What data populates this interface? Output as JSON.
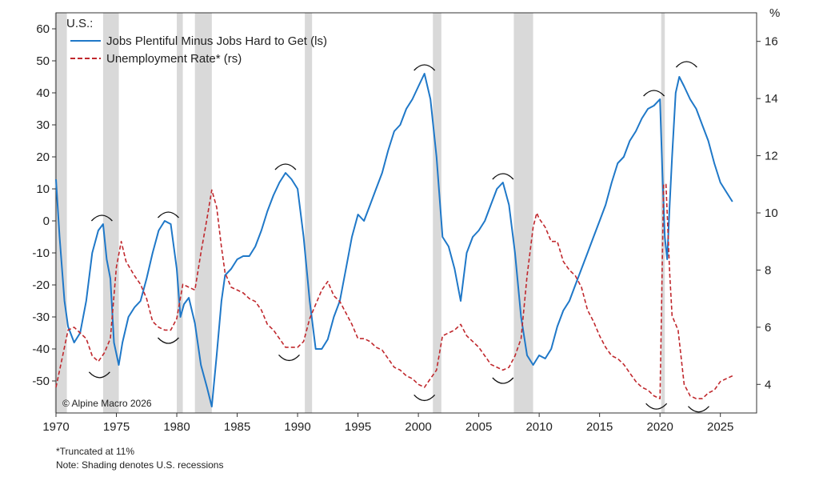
{
  "chart_data": {
    "type": "line",
    "title": "U.S.:",
    "credit": "© Alpine Macro 2026",
    "right_unit": "%",
    "x_ticks": [
      "1970",
      "1975",
      "1980",
      "1985",
      "1990",
      "1995",
      "2000",
      "2005",
      "2010",
      "2015",
      "2020",
      "2025"
    ],
    "xlim": [
      1970,
      2028
    ],
    "ylim_left": [
      -60,
      65
    ],
    "left_ticks": [
      "60",
      "50",
      "40",
      "30",
      "20",
      "10",
      "0",
      "-10",
      "-20",
      "-30",
      "-40",
      "-50"
    ],
    "ylim_right": [
      3,
      17
    ],
    "right_ticks": [
      "16",
      "14",
      "12",
      "10",
      "8",
      "6",
      "4"
    ],
    "grid": false,
    "legend_position": "top-left",
    "recessions": [
      [
        1969.9,
        1970.9
      ],
      [
        1973.9,
        1975.2
      ],
      [
        1980.0,
        1980.5
      ],
      [
        1981.5,
        1982.9
      ],
      [
        1990.6,
        1991.2
      ],
      [
        2001.2,
        2001.9
      ],
      [
        2007.9,
        2009.5
      ],
      [
        2020.1,
        2020.4
      ]
    ],
    "series": [
      {
        "name": "Jobs Plentiful Minus Jobs Hard to Get (ls)",
        "axis": "left",
        "color": "#1f78c8",
        "style": "solid",
        "x": [
          1970.0,
          1970.3,
          1970.7,
          1971.0,
          1971.5,
          1972.0,
          1972.5,
          1973.0,
          1973.5,
          1973.9,
          1974.2,
          1974.5,
          1974.8,
          1975.2,
          1975.5,
          1976.0,
          1976.5,
          1977.0,
          1977.5,
          1978.0,
          1978.5,
          1979.0,
          1979.5,
          1980.0,
          1980.3,
          1980.6,
          1981.0,
          1981.5,
          1982.0,
          1982.5,
          1982.9,
          1983.3,
          1983.7,
          1984.0,
          1984.5,
          1985.0,
          1985.5,
          1986.0,
          1986.5,
          1987.0,
          1987.5,
          1988.0,
          1988.5,
          1989.0,
          1989.5,
          1990.0,
          1990.5,
          1991.0,
          1991.5,
          1992.0,
          1992.5,
          1993.0,
          1993.5,
          1994.0,
          1994.5,
          1995.0,
          1995.5,
          1996.0,
          1996.5,
          1997.0,
          1997.5,
          1998.0,
          1998.5,
          1999.0,
          1999.5,
          2000.0,
          2000.5,
          2001.0,
          2001.5,
          2001.8,
          2002.0,
          2002.5,
          2003.0,
          2003.5,
          2004.0,
          2004.5,
          2005.0,
          2005.5,
          2006.0,
          2006.5,
          2007.0,
          2007.5,
          2008.0,
          2008.5,
          2009.0,
          2009.5,
          2010.0,
          2010.5,
          2011.0,
          2011.5,
          2012.0,
          2012.5,
          2013.0,
          2013.5,
          2014.0,
          2014.5,
          2015.0,
          2015.5,
          2016.0,
          2016.5,
          2017.0,
          2017.5,
          2018.0,
          2018.5,
          2019.0,
          2019.5,
          2020.0,
          2020.2,
          2020.4,
          2020.6,
          2020.8,
          2021.0,
          2021.3,
          2021.6,
          2022.0,
          2022.5,
          2023.0,
          2023.5,
          2024.0,
          2024.5,
          2025.0,
          2025.5,
          2026.0
        ],
        "values": [
          13,
          -5,
          -25,
          -33,
          -38,
          -35,
          -25,
          -10,
          -3,
          -1,
          -12,
          -18,
          -38,
          -45,
          -38,
          -30,
          -27,
          -25,
          -18,
          -10,
          -3,
          0,
          -1,
          -15,
          -30,
          -26,
          -24,
          -32,
          -45,
          -52,
          -58,
          -42,
          -25,
          -17,
          -15,
          -12,
          -11,
          -11,
          -8,
          -3,
          3,
          8,
          12,
          15,
          13,
          10,
          -5,
          -25,
          -40,
          -40,
          -37,
          -30,
          -25,
          -15,
          -5,
          2,
          0,
          5,
          10,
          15,
          22,
          28,
          30,
          35,
          38,
          42,
          46,
          38,
          20,
          5,
          -5,
          -8,
          -15,
          -25,
          -10,
          -5,
          -3,
          0,
          5,
          10,
          12,
          5,
          -10,
          -30,
          -42,
          -45,
          -42,
          -43,
          -40,
          -33,
          -28,
          -25,
          -20,
          -15,
          -10,
          -5,
          0,
          5,
          12,
          18,
          20,
          25,
          28,
          32,
          35,
          36,
          38,
          15,
          -5,
          -12,
          5,
          20,
          40,
          45,
          42,
          38,
          35,
          30,
          25,
          18,
          12,
          9,
          6
        ]
      },
      {
        "name": "Unemployment Rate* (rs)",
        "axis": "right",
        "color": "#c0282d",
        "style": "dashed",
        "x": [
          1970.0,
          1970.5,
          1971.0,
          1971.5,
          1972.0,
          1972.5,
          1973.0,
          1973.5,
          1974.0,
          1974.5,
          1975.0,
          1975.4,
          1975.8,
          1976.5,
          1977.0,
          1977.5,
          1978.0,
          1978.5,
          1979.0,
          1979.5,
          1980.0,
          1980.5,
          1981.0,
          1981.5,
          1982.0,
          1982.5,
          1982.9,
          1983.3,
          1983.7,
          1984.0,
          1984.5,
          1985.0,
          1985.5,
          1986.0,
          1986.5,
          1987.0,
          1987.5,
          1988.0,
          1988.5,
          1989.0,
          1989.5,
          1990.0,
          1990.5,
          1991.0,
          1991.5,
          1992.0,
          1992.5,
          1993.0,
          1993.5,
          1994.0,
          1994.5,
          1995.0,
          1995.5,
          1996.0,
          1996.5,
          1997.0,
          1997.5,
          1998.0,
          1998.5,
          1999.0,
          1999.5,
          2000.0,
          2000.5,
          2001.0,
          2001.5,
          2002.0,
          2002.5,
          2003.0,
          2003.5,
          2004.0,
          2004.5,
          2005.0,
          2005.5,
          2006.0,
          2006.5,
          2007.0,
          2007.5,
          2008.0,
          2008.5,
          2009.0,
          2009.5,
          2009.8,
          2010.0,
          2010.5,
          2011.0,
          2011.5,
          2012.0,
          2012.5,
          2013.0,
          2013.5,
          2014.0,
          2014.5,
          2015.0,
          2015.5,
          2016.0,
          2016.5,
          2017.0,
          2017.5,
          2018.0,
          2018.5,
          2019.0,
          2019.5,
          2020.0,
          2020.3,
          2020.5,
          2020.8,
          2021.0,
          2021.5,
          2022.0,
          2022.5,
          2023.0,
          2023.5,
          2024.0,
          2024.5,
          2025.0,
          2025.5,
          2026.0
        ],
        "values": [
          3.9,
          4.9,
          5.9,
          6.0,
          5.8,
          5.6,
          5.0,
          4.8,
          5.1,
          5.6,
          8.1,
          9.0,
          8.3,
          7.8,
          7.5,
          7.0,
          6.2,
          6.0,
          5.9,
          5.9,
          6.3,
          7.5,
          7.4,
          7.3,
          8.6,
          9.8,
          10.8,
          10.2,
          8.8,
          7.9,
          7.4,
          7.3,
          7.2,
          7.0,
          6.9,
          6.6,
          6.1,
          5.9,
          5.6,
          5.3,
          5.3,
          5.3,
          5.5,
          6.3,
          6.8,
          7.3,
          7.6,
          7.1,
          6.9,
          6.5,
          6.1,
          5.6,
          5.6,
          5.5,
          5.3,
          5.2,
          4.9,
          4.6,
          4.5,
          4.3,
          4.2,
          4.0,
          3.9,
          4.2,
          4.5,
          5.7,
          5.8,
          5.9,
          6.1,
          5.7,
          5.5,
          5.3,
          5.0,
          4.7,
          4.6,
          4.5,
          4.6,
          5.0,
          5.6,
          7.8,
          9.5,
          10.0,
          9.8,
          9.5,
          9.0,
          9.0,
          8.3,
          8.0,
          7.8,
          7.4,
          6.6,
          6.2,
          5.7,
          5.3,
          5.0,
          4.9,
          4.7,
          4.4,
          4.1,
          3.9,
          3.8,
          3.6,
          3.5,
          11.0,
          11.0,
          7.9,
          6.4,
          5.9,
          4.0,
          3.6,
          3.5,
          3.5,
          3.7,
          3.8,
          4.1,
          4.2,
          4.3
        ]
      }
    ],
    "annotations": [
      {
        "type": "peak-arc",
        "year": 1973.8,
        "value": -1
      },
      {
        "type": "peak-arc",
        "year": 1979.3,
        "value": 0
      },
      {
        "type": "peak-arc",
        "year": 1989.0,
        "value": 15
      },
      {
        "type": "peak-arc",
        "year": 2000.5,
        "value": 46
      },
      {
        "type": "peak-arc",
        "year": 2007.0,
        "value": 12
      },
      {
        "type": "peak-arc",
        "year": 2019.5,
        "value": 38
      },
      {
        "type": "peak-arc",
        "year": 2022.2,
        "value": 47
      },
      {
        "type": "trough-arc",
        "year": 1973.6,
        "value": 4.6
      },
      {
        "type": "trough-arc",
        "year": 1979.3,
        "value": 5.8
      },
      {
        "type": "trough-arc",
        "year": 1989.3,
        "value": 5.2
      },
      {
        "type": "trough-arc",
        "year": 2000.5,
        "value": 3.8
      },
      {
        "type": "trough-arc",
        "year": 2007.0,
        "value": 4.4
      },
      {
        "type": "trough-arc",
        "year": 2019.7,
        "value": 3.5
      },
      {
        "type": "trough-arc",
        "year": 2023.2,
        "value": 3.4
      }
    ]
  },
  "notes": {
    "truncated": "*Truncated at 11%",
    "shading": "Note: Shading denotes U.S. recessions"
  }
}
